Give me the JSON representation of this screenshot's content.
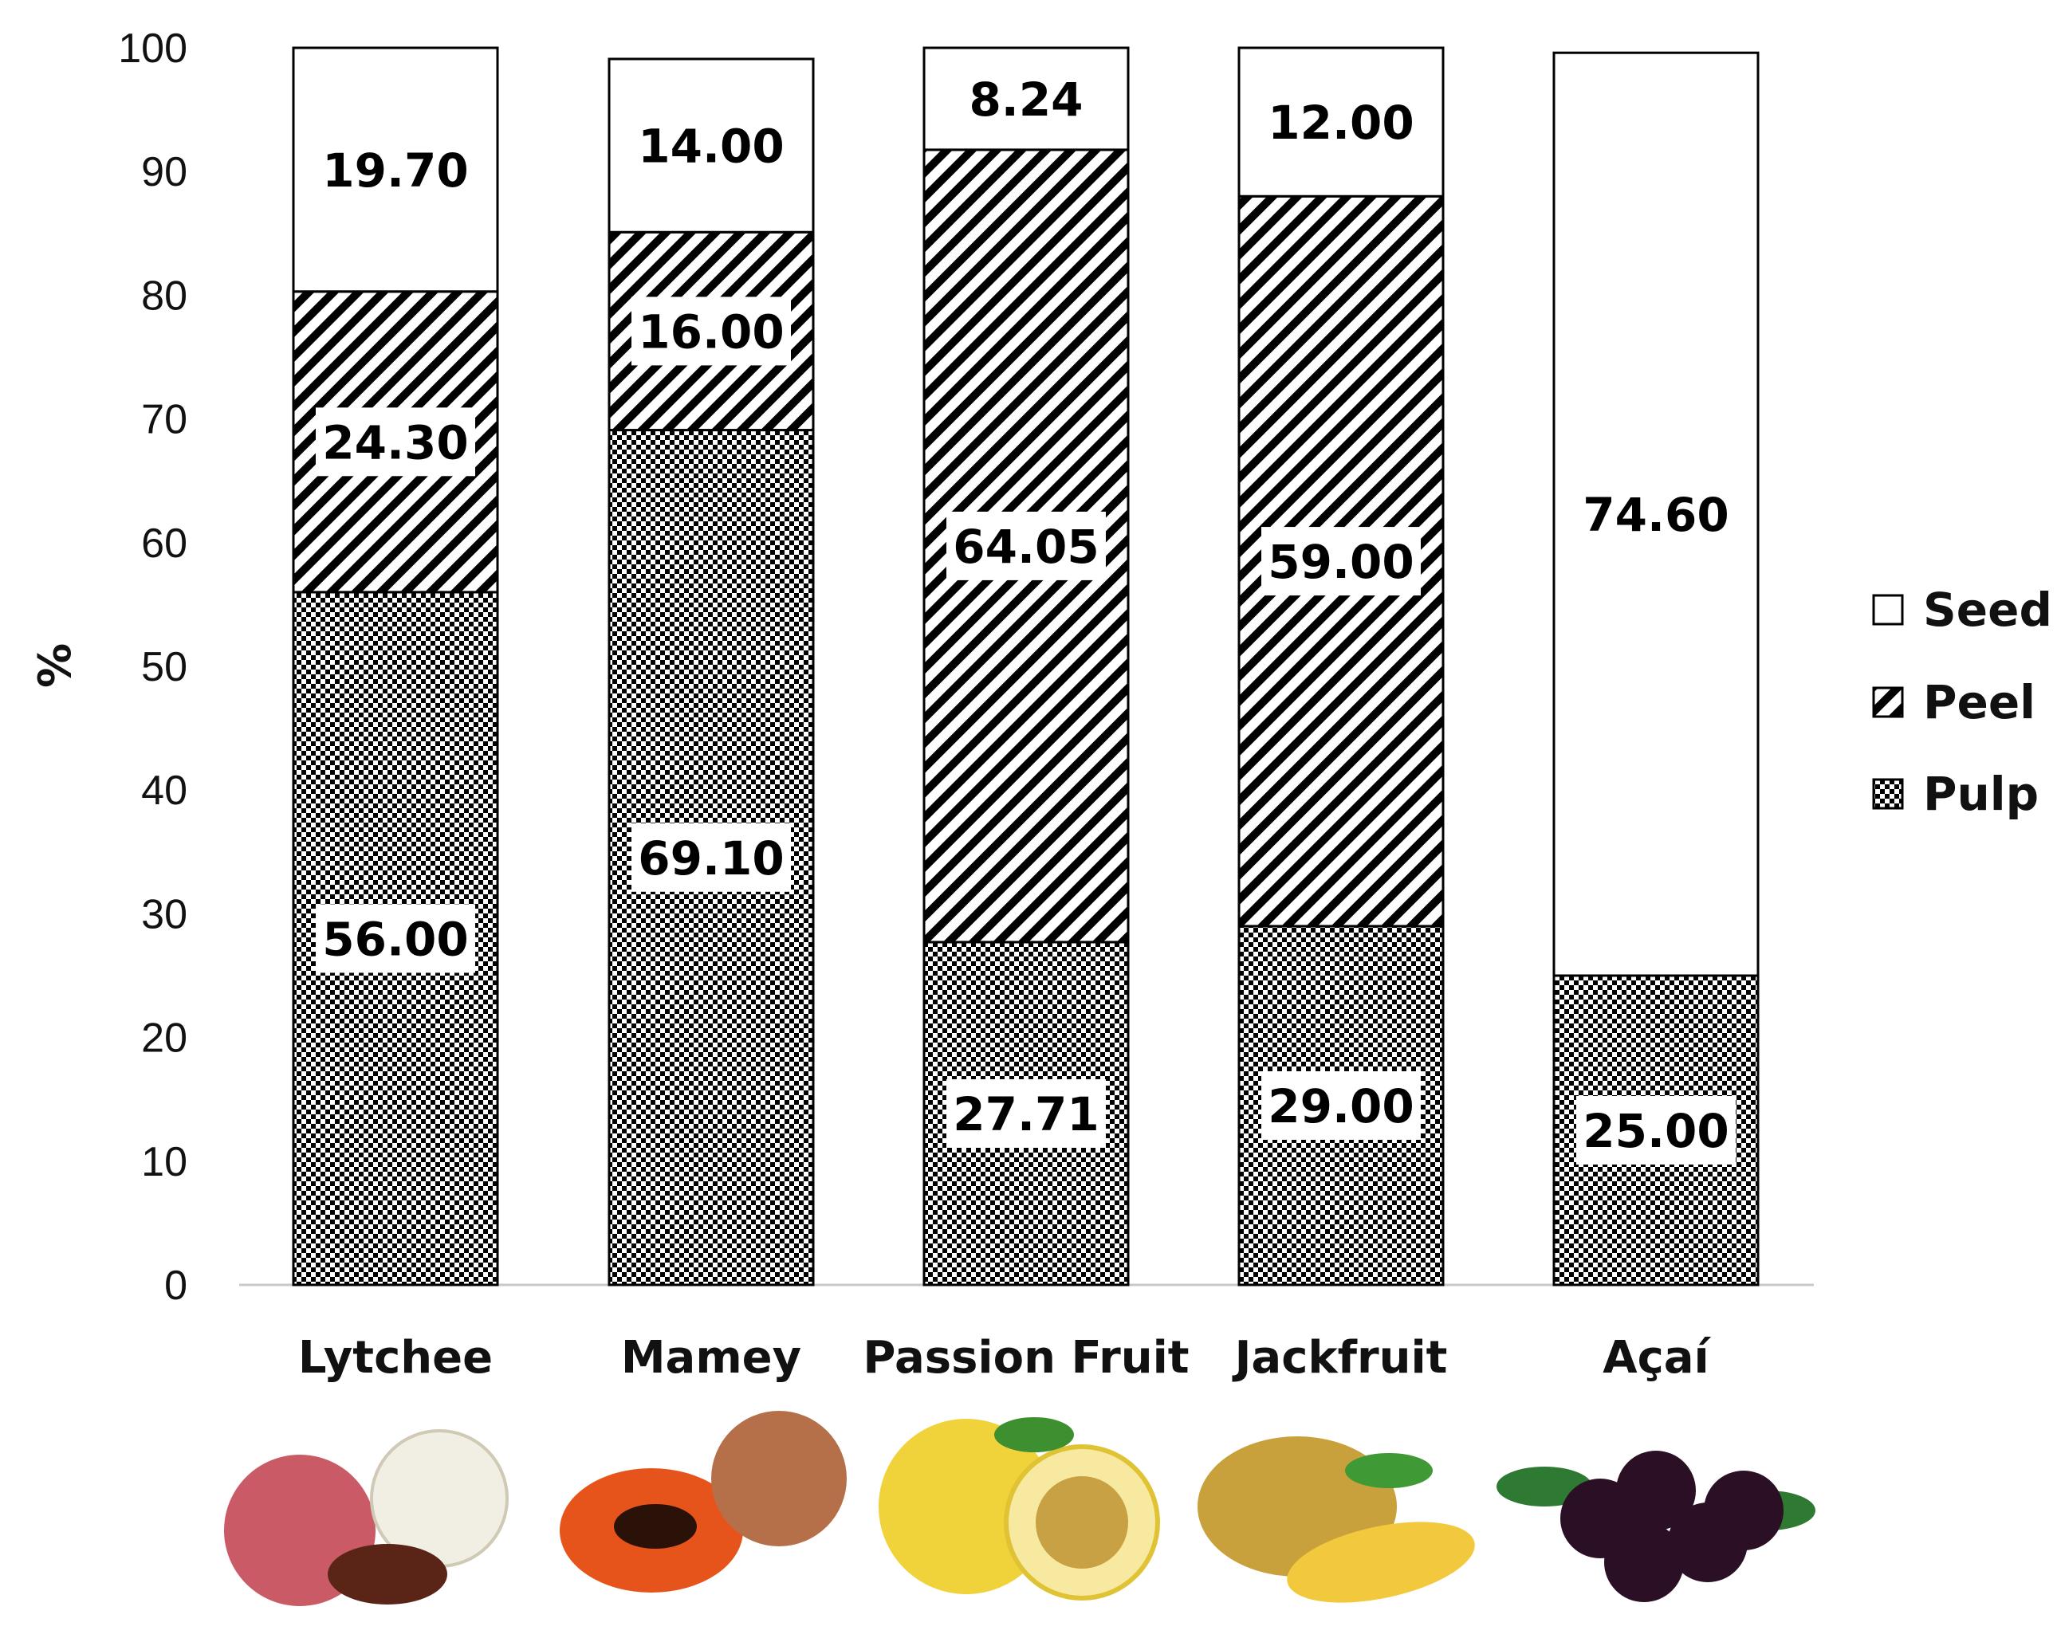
{
  "chart_data": {
    "type": "bar",
    "stacked": true,
    "ylabel": "%",
    "xlabel": "",
    "ylim": [
      0,
      100
    ],
    "yticks": [
      0,
      10,
      20,
      30,
      40,
      50,
      60,
      70,
      80,
      90,
      100
    ],
    "grid": false,
    "legend_position": "right",
    "categories": [
      "Lytchee",
      "Mamey",
      "Passion Fruit",
      "Jackfruit",
      "Açaí"
    ],
    "series": [
      {
        "name": "Pulp",
        "pattern": "checker",
        "values": [
          56.0,
          69.1,
          27.71,
          29.0,
          25.0
        ],
        "labels": [
          "56.00",
          "69.10",
          "27.71",
          "29.00",
          "25.00"
        ]
      },
      {
        "name": "Peel",
        "pattern": "diagonal-stripes",
        "values": [
          24.3,
          16.0,
          64.05,
          59.0,
          0
        ],
        "labels": [
          "24.30",
          "16.00",
          "64.05",
          "59.00",
          ""
        ]
      },
      {
        "name": "Seed",
        "pattern": "plain-white",
        "values": [
          19.7,
          14.0,
          8.24,
          12.0,
          74.6
        ],
        "labels": [
          "19.70",
          "14.00",
          "8.24",
          "12.00",
          "74.60"
        ]
      }
    ],
    "legend_order": [
      "Seed",
      "Peel",
      "Pulp"
    ],
    "images_below_bars": [
      "lychee-icon",
      "mamey-icon",
      "passion-fruit-icon",
      "jackfruit-icon",
      "acai-icon"
    ],
    "colors": {
      "ink": "#000000",
      "background": "#ffffff"
    }
  }
}
